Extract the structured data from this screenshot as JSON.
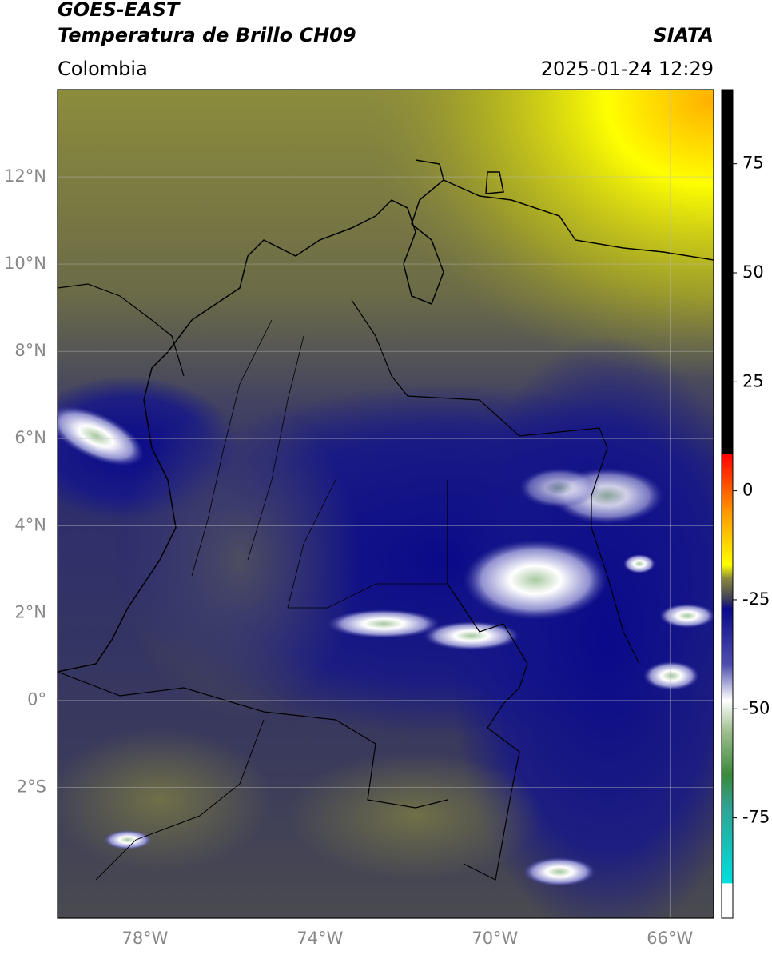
{
  "header": {
    "satellite": "GOES-EAST",
    "product": "Temperatura de Brillo CH09",
    "source": "SIATA",
    "region": "Colombia",
    "datetime": "2025-01-24 12:29"
  },
  "map": {
    "lonlim": [
      -80,
      -65
    ],
    "latlim": [
      -5,
      14
    ],
    "lonticks": [
      {
        "value": -78,
        "label": "78°W"
      },
      {
        "value": -74,
        "label": "74°W"
      },
      {
        "value": -70,
        "label": "70°W"
      },
      {
        "value": -66,
        "label": "66°W"
      }
    ],
    "latticks": [
      {
        "value": 12,
        "label": "12°N"
      },
      {
        "value": 10,
        "label": "10°N"
      },
      {
        "value": 8,
        "label": "8°N"
      },
      {
        "value": 6,
        "label": "6°N"
      },
      {
        "value": 4,
        "label": "4°N"
      },
      {
        "value": 2,
        "label": "2°N"
      },
      {
        "value": 0,
        "label": "0°"
      },
      {
        "value": -2,
        "label": "2°S"
      }
    ]
  },
  "colorbar": {
    "lim": [
      -98,
      92
    ],
    "ticks": [
      75,
      50,
      25,
      0,
      -25,
      -50,
      -75
    ],
    "colormap": [
      {
        "value": 92,
        "color": "#000000"
      },
      {
        "value": 8.5,
        "color": "#000000"
      },
      {
        "value": 8.5,
        "color": "#ff0000"
      },
      {
        "value": -5,
        "color": "#ff9900"
      },
      {
        "value": -17,
        "color": "#ffff00"
      },
      {
        "value": -20,
        "color": "#8a8a3a"
      },
      {
        "value": -25,
        "color": "#3a3a5a"
      },
      {
        "value": -27,
        "color": "#0a0a8a"
      },
      {
        "value": -40,
        "color": "#5050b0"
      },
      {
        "value": -48,
        "color": "#ffffff"
      },
      {
        "value": -55,
        "color": "#a0c090"
      },
      {
        "value": -65,
        "color": "#3a8a3a"
      },
      {
        "value": -72,
        "color": "#30a090"
      },
      {
        "value": -90,
        "color": "#00e0e0"
      },
      {
        "value": -90,
        "color": "#ffffff"
      },
      {
        "value": -98,
        "color": "#ffffff"
      }
    ]
  }
}
